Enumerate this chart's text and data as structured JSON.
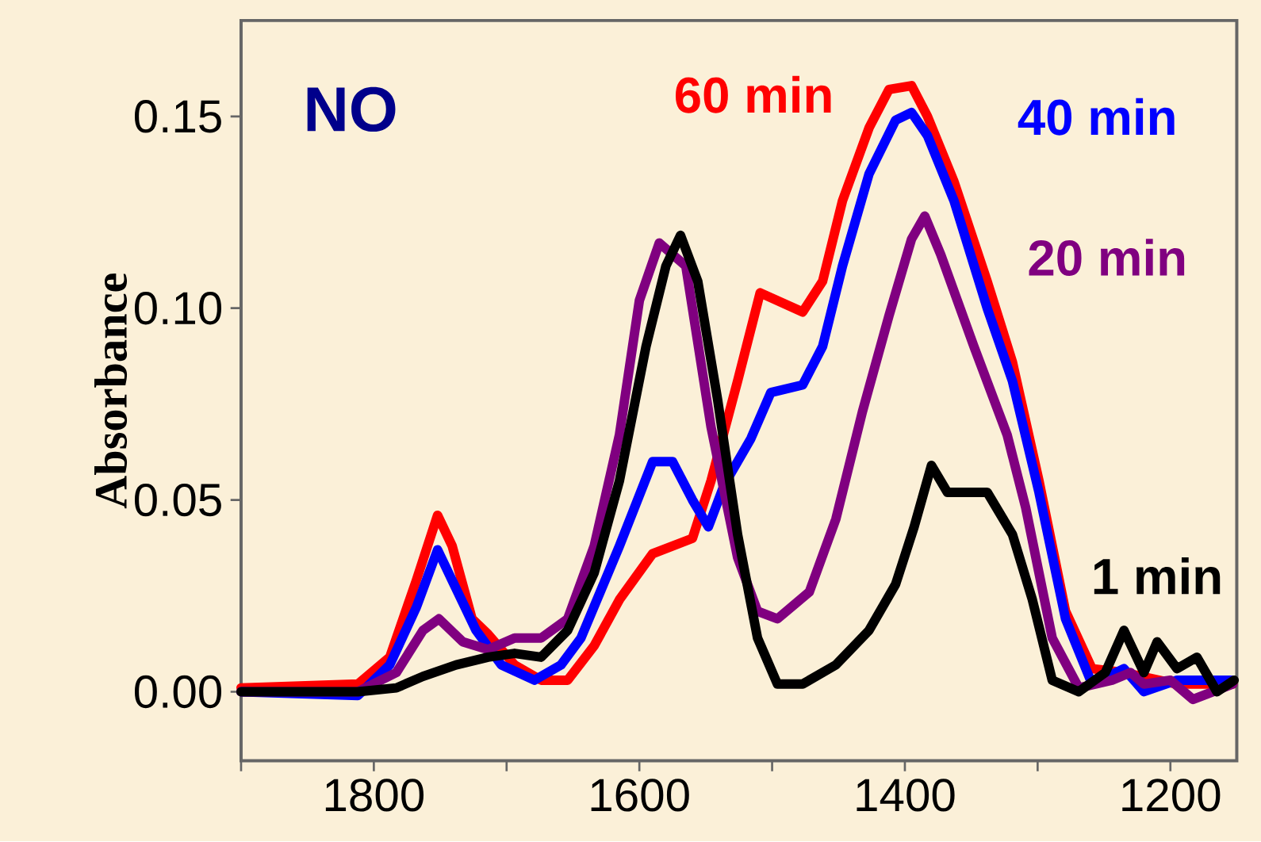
{
  "chart_data": {
    "type": "line",
    "ylabel": "Absorbance",
    "annotations": [
      "NO"
    ],
    "xlim": [
      1900,
      1150
    ],
    "ylim": [
      -0.018,
      0.175
    ],
    "xticks": [
      {
        "value": 1900,
        "label": null
      },
      1800,
      {
        "value": 1700,
        "label": null
      },
      1600,
      {
        "value": 1500,
        "label": null
      },
      1400,
      {
        "value": 1300,
        "label": null
      },
      1200
    ],
    "yticks": [
      {
        "value": 0,
        "label": "0.00"
      },
      {
        "value": 0.05,
        "label": "0.05"
      },
      {
        "value": 0.1,
        "label": "0.10"
      },
      {
        "value": 0.15,
        "label": "0.15"
      }
    ],
    "x": [
      1900,
      1812,
      1788,
      1768,
      1752,
      1741,
      1726,
      1714,
      1694,
      1674,
      1654,
      1634,
      1615,
      1590,
      1560,
      1546,
      1526,
      1509,
      1477,
      1462,
      1447,
      1427,
      1412,
      1395,
      1383,
      1363,
      1338,
      1319,
      1299,
      1279,
      1259,
      1235,
      1220,
      1195,
      1153
    ],
    "series": [
      {
        "name": "60 min",
        "color": "#ff0000",
        "values": [
          0.001,
          0.002,
          0.009,
          0.029,
          0.046,
          0.038,
          0.019,
          0.015,
          0.007,
          0.003,
          0.003,
          0.012,
          0.024,
          0.036,
          0.04,
          0.055,
          0.081,
          0.104,
          0.099,
          0.107,
          0.128,
          0.147,
          0.157,
          0.158,
          0.15,
          0.133,
          0.107,
          0.086,
          0.055,
          0.021,
          0.006,
          0.005,
          null,
          0.002,
          0.002
        ]
      },
      {
        "name": "40 min",
        "color": "#0000ff",
        "x": [
          1900,
          1812,
          1788,
          1768,
          1752,
          1741,
          1723,
          1704,
          1679,
          1659,
          1644,
          1615,
          1590,
          1575,
          1560,
          1548,
          1536,
          1516,
          1501,
          1477,
          1462,
          1447,
          1427,
          1407,
          1395,
          1383,
          1363,
          1338,
          1319,
          1299,
          1279,
          1259,
          1235,
          1220,
          1195,
          1153
        ],
        "values": [
          0.0,
          -0.001,
          0.007,
          0.022,
          0.037,
          0.029,
          0.016,
          0.007,
          0.003,
          0.007,
          0.014,
          0.038,
          0.06,
          0.06,
          0.05,
          0.043,
          0.054,
          0.066,
          0.078,
          0.08,
          0.09,
          0.111,
          0.135,
          0.149,
          0.151,
          0.145,
          0.128,
          0.1,
          0.081,
          0.052,
          0.019,
          0.002,
          0.006,
          0.0,
          0.003,
          0.003
        ]
      },
      {
        "name": "20 min",
        "color": "#800080",
        "x": [
          1900,
          1812,
          1783,
          1763,
          1751,
          1733,
          1714,
          1694,
          1674,
          1654,
          1634,
          1615,
          1600,
          1585,
          1565,
          1546,
          1526,
          1511,
          1496,
          1472,
          1452,
          1432,
          1412,
          1395,
          1385,
          1373,
          1348,
          1323,
          1309,
          1289,
          1269,
          1244,
          1230,
          1220,
          1200,
          1183,
          1153
        ],
        "values": [
          0.0,
          0.0,
          0.005,
          0.016,
          0.019,
          0.013,
          0.011,
          0.014,
          0.014,
          0.019,
          0.038,
          0.067,
          0.102,
          0.117,
          0.111,
          0.069,
          0.035,
          0.021,
          0.019,
          0.026,
          0.045,
          0.073,
          0.098,
          0.118,
          0.124,
          0.114,
          0.09,
          0.067,
          0.048,
          0.014,
          0.001,
          0.003,
          0.005,
          0.002,
          0.003,
          -0.002,
          0.002
        ]
      },
      {
        "name": "1 min",
        "color": "#000000",
        "x": [
          1900,
          1812,
          1783,
          1763,
          1738,
          1714,
          1694,
          1674,
          1654,
          1634,
          1615,
          1595,
          1580,
          1569,
          1556,
          1541,
          1526,
          1511,
          1496,
          1477,
          1452,
          1427,
          1407,
          1393,
          1380,
          1368,
          1338,
          1319,
          1304,
          1289,
          1269,
          1249,
          1235,
          1220,
          1210,
          1195,
          1180,
          1165,
          1152
        ],
        "values": [
          0.0,
          0.0,
          0.001,
          0.004,
          0.007,
          0.009,
          0.01,
          0.009,
          0.016,
          0.031,
          0.055,
          0.09,
          0.111,
          0.119,
          0.107,
          0.076,
          0.041,
          0.014,
          0.002,
          0.002,
          0.007,
          0.016,
          0.028,
          0.043,
          0.059,
          0.052,
          0.052,
          0.041,
          0.024,
          0.003,
          0.0,
          0.005,
          0.016,
          0.005,
          0.013,
          0.006,
          0.009,
          0.0,
          0.003
        ]
      }
    ]
  }
}
